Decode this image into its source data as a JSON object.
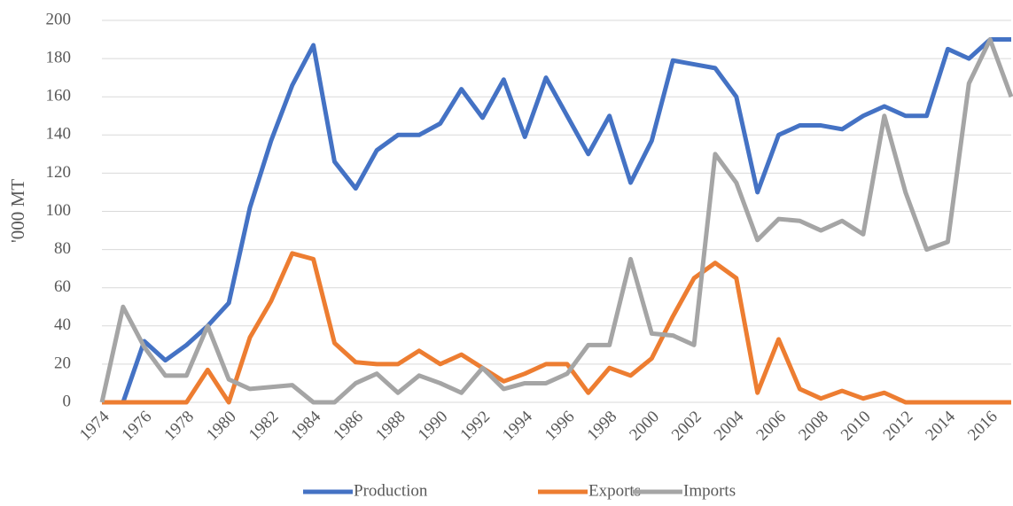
{
  "chart_data": {
    "type": "line",
    "y_label": "'000 MT",
    "x": [
      1974,
      1975,
      1976,
      1977,
      1978,
      1979,
      1980,
      1981,
      1982,
      1983,
      1984,
      1985,
      1986,
      1987,
      1988,
      1989,
      1990,
      1991,
      1992,
      1993,
      1994,
      1995,
      1996,
      1997,
      1998,
      1999,
      2000,
      2001,
      2002,
      2003,
      2004,
      2005,
      2006,
      2007,
      2008,
      2009,
      2010,
      2011,
      2012,
      2013,
      2014,
      2015,
      2016,
      2017
    ],
    "series": [
      {
        "name": "Production",
        "color": "#4472c4",
        "values": [
          0,
          0,
          32,
          22,
          30,
          40,
          52,
          102,
          137,
          166,
          187,
          126,
          112,
          132,
          140,
          140,
          146,
          164,
          149,
          169,
          139,
          170,
          150,
          130,
          150,
          115,
          137,
          179,
          177,
          175,
          160,
          110,
          140,
          145,
          145,
          143,
          150,
          155,
          150,
          150,
          185,
          180,
          190,
          190
        ]
      },
      {
        "name": "Exports",
        "color": "#ed7d31",
        "values": [
          0,
          0,
          0,
          0,
          0,
          17,
          0,
          34,
          53,
          78,
          75,
          31,
          21,
          20,
          20,
          27,
          20,
          25,
          18,
          11,
          15,
          20,
          20,
          5,
          18,
          14,
          23,
          45,
          65,
          73,
          65,
          5,
          33,
          7,
          2,
          6,
          2,
          5,
          0,
          0,
          0,
          0,
          0,
          0
        ]
      },
      {
        "name": "Imports",
        "color": "#a5a5a5",
        "values": [
          0,
          50,
          29,
          14,
          14,
          40,
          12,
          7,
          8,
          9,
          0,
          0,
          10,
          15,
          5,
          14,
          10,
          5,
          18,
          7,
          10,
          10,
          15,
          30,
          30,
          75,
          36,
          35,
          30,
          130,
          115,
          85,
          96,
          95,
          90,
          95,
          88,
          150,
          110,
          80,
          84,
          167,
          190,
          160
        ]
      }
    ],
    "xlim": [
      1974,
      2017
    ],
    "xticks": [
      1974,
      1976,
      1978,
      1980,
      1982,
      1984,
      1986,
      1988,
      1990,
      1992,
      1994,
      1996,
      1998,
      2000,
      2002,
      2004,
      2006,
      2008,
      2010,
      2012,
      2014,
      2016
    ],
    "ylim": [
      0,
      200
    ],
    "yticks": [
      0,
      20,
      40,
      60,
      80,
      100,
      120,
      140,
      160,
      180,
      200
    ],
    "grid": true,
    "legend": "bottom"
  }
}
